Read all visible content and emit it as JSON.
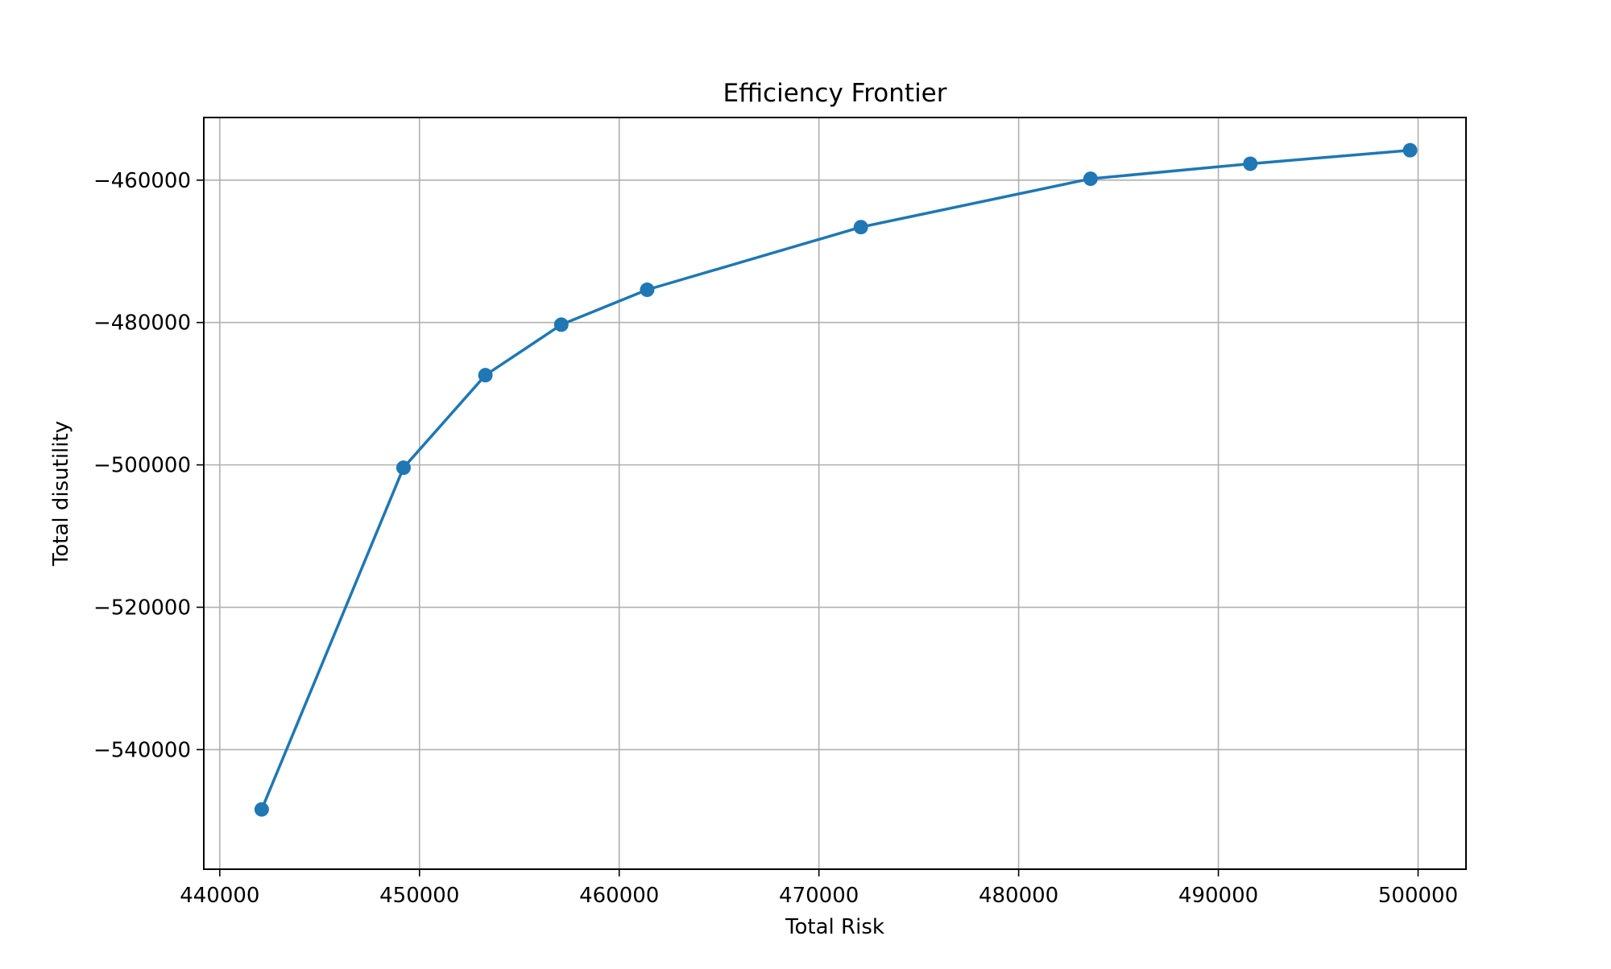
{
  "chart_data": {
    "type": "line",
    "title": "Efficiency Frontier",
    "xlabel": "Total Risk",
    "ylabel": "Total disutility",
    "xlim": [
      439200,
      502400
    ],
    "ylim": [
      -556800,
      -451200
    ],
    "xticks": [
      440000,
      450000,
      460000,
      470000,
      480000,
      490000,
      500000
    ],
    "yticks": [
      -460000,
      -480000,
      -500000,
      -520000,
      -540000
    ],
    "xtick_labels": [
      "440000",
      "450000",
      "460000",
      "470000",
      "480000",
      "490000",
      "500000"
    ],
    "ytick_labels": [
      "−460000",
      "−480000",
      "−500000",
      "−520000",
      "−540000"
    ],
    "grid": true,
    "series": [
      {
        "x": [
          442100,
          449200,
          453300,
          457100,
          461400,
          472100,
          483600,
          491600,
          499600
        ],
        "y": [
          -548400,
          -500400,
          -487400,
          -480300,
          -475400,
          -466600,
          -459800,
          -457700,
          -455800
        ],
        "color": "#1f77b4",
        "marker": "circle"
      }
    ]
  }
}
